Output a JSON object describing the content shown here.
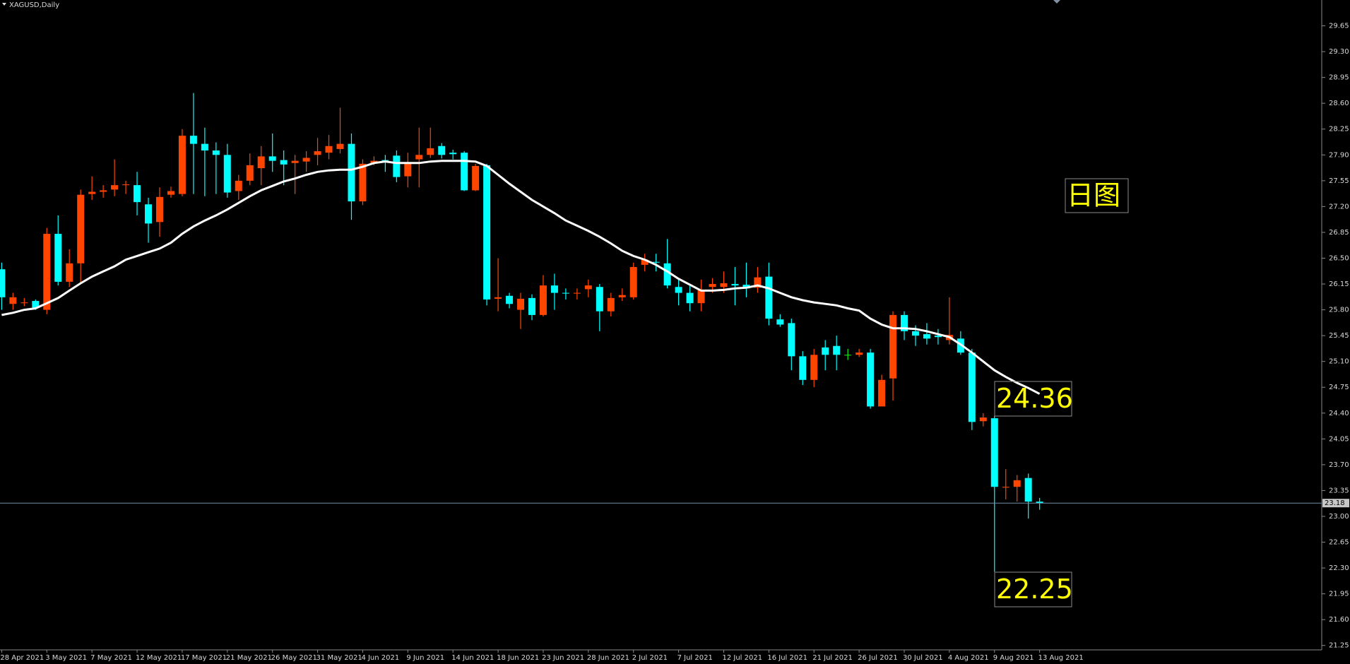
{
  "chart_data": {
    "type": "candlestick",
    "title": "XAGUSD,Daily",
    "categories": [
      "28 Apr 2021",
      null,
      null,
      null,
      "3 May 2021",
      null,
      null,
      null,
      "7 May 2021",
      null,
      null,
      null,
      "12 May 2021",
      null,
      null,
      null,
      "17 May 2021",
      null,
      null,
      null,
      "21 May 2021",
      null,
      null,
      null,
      "26 May 2021",
      null,
      null,
      null,
      "31 May 2021",
      null,
      null,
      null,
      "4 Jun 2021",
      null,
      null,
      null,
      "9 Jun 2021",
      null,
      null,
      null,
      "14 Jun 2021",
      null,
      null,
      null,
      "18 Jun 2021",
      null,
      null,
      null,
      "23 Jun 2021",
      null,
      null,
      null,
      "28 Jun 2021",
      null,
      null,
      null,
      "2 Jul 2021",
      null,
      null,
      null,
      "7 Jul 2021",
      null,
      null,
      null,
      "12 Jul 2021",
      null,
      null,
      null,
      "16 Jul 2021",
      null,
      null,
      null,
      "21 Jul 2021",
      null,
      null,
      null,
      "26 Jul 2021",
      null,
      null,
      null,
      "30 Jul 2021",
      null,
      null,
      null,
      "4 Aug 2021",
      null,
      null,
      null,
      "9 Aug 2021",
      null,
      null,
      null,
      "13 Aug 2021"
    ],
    "open": [
      26.35,
      25.88,
      25.89,
      25.92,
      25.8,
      26.83,
      26.18,
      26.43,
      27.37,
      27.4,
      27.43,
      27.49,
      27.49,
      27.23,
      26.99,
      27.36,
      27.37,
      28.16,
      28.05,
      27.96,
      27.9,
      27.41,
      27.55,
      27.72,
      27.88,
      27.83,
      27.79,
      27.81,
      27.9,
      27.93,
      27.98,
      28.05,
      27.27,
      27.79,
      27.83,
      27.89,
      27.61,
      27.84,
      27.9,
      28.02,
      27.93,
      27.93,
      27.42,
      27.76,
      25.95,
      25.99,
      25.8,
      25.96,
      25.73,
      26.13,
      26.03,
      26.02,
      26.08,
      26.11,
      25.78,
      25.97,
      25.97,
      26.41,
      26.45,
      26.43,
      26.11,
      26.03,
      25.89,
      26.11,
      26.11,
      26.15,
      26.14,
      26.1,
      26.25,
      25.67,
      25.62,
      25.17,
      24.85,
      25.29,
      25.31,
      25.19,
      25.19,
      25.22,
      24.49,
      24.87,
      25.73,
      25.51,
      25.47,
      25.45,
      25.39,
      25.41,
      25.22,
      24.29,
      24.33,
      23.39,
      23.4,
      23.52,
      23.2
    ],
    "high": [
      26.44,
      26.03,
      25.96,
      25.94,
      26.91,
      27.08,
      26.62,
      27.43,
      27.61,
      27.49,
      27.84,
      27.55,
      27.67,
      27.32,
      27.46,
      27.47,
      28.25,
      28.74,
      28.27,
      28.07,
      28.05,
      27.63,
      27.92,
      28.02,
      28.19,
      27.96,
      27.9,
      27.95,
      28.13,
      28.17,
      28.54,
      28.19,
      27.84,
      27.88,
      27.9,
      27.96,
      27.93,
      28.27,
      28.27,
      28.06,
      27.97,
      27.95,
      27.78,
      27.78,
      26.5,
      26.03,
      26.03,
      26.01,
      26.27,
      26.29,
      26.09,
      26.09,
      26.21,
      26.15,
      26.03,
      26.09,
      26.44,
      26.56,
      26.56,
      26.76,
      26.21,
      26.15,
      26.21,
      26.23,
      26.32,
      26.38,
      26.44,
      26.38,
      26.44,
      25.74,
      25.68,
      25.24,
      25.27,
      25.39,
      25.45,
      25.27,
      25.27,
      25.27,
      24.92,
      25.78,
      25.78,
      25.59,
      25.62,
      25.54,
      25.97,
      25.51,
      25.27,
      24.4,
      24.36,
      23.64,
      23.56,
      23.58,
      23.25
    ],
    "low": [
      25.8,
      25.8,
      25.85,
      25.8,
      25.74,
      26.13,
      26.11,
      26.15,
      27.29,
      27.32,
      27.34,
      27.37,
      27.08,
      26.71,
      26.79,
      27.32,
      27.34,
      27.37,
      27.34,
      27.37,
      27.32,
      27.29,
      27.49,
      27.49,
      27.67,
      27.49,
      27.37,
      27.67,
      27.76,
      27.84,
      27.92,
      27.02,
      27.22,
      27.76,
      27.67,
      27.53,
      27.46,
      27.46,
      27.86,
      27.85,
      27.84,
      27.41,
      27.41,
      25.86,
      25.78,
      25.82,
      25.54,
      25.66,
      25.71,
      25.8,
      25.94,
      25.94,
      25.97,
      25.51,
      25.71,
      25.92,
      25.94,
      26.32,
      26.32,
      26.09,
      25.86,
      25.78,
      25.78,
      26.03,
      26.03,
      25.86,
      25.97,
      26.03,
      25.59,
      25.57,
      24.98,
      24.78,
      24.75,
      24.98,
      24.98,
      25.12,
      25.16,
      24.46,
      24.57,
      24.57,
      25.39,
      25.31,
      25.33,
      25.33,
      25.33,
      25.19,
      24.17,
      24.22,
      22.25,
      23.23,
      23.2,
      22.97,
      23.09
    ],
    "close": [
      25.97,
      25.97,
      25.9,
      25.83,
      26.83,
      26.18,
      26.43,
      27.36,
      27.4,
      27.42,
      27.49,
      27.5,
      27.26,
      26.97,
      27.33,
      27.41,
      28.16,
      28.05,
      27.96,
      27.9,
      27.39,
      27.55,
      27.76,
      27.88,
      27.82,
      27.77,
      27.82,
      27.86,
      27.95,
      28.02,
      28.05,
      27.27,
      27.78,
      27.82,
      27.82,
      27.6,
      27.78,
      27.9,
      27.99,
      27.9,
      27.91,
      27.42,
      27.75,
      25.94,
      25.97,
      25.88,
      25.95,
      25.73,
      26.13,
      26.03,
      26.02,
      26.03,
      26.13,
      25.78,
      25.96,
      26.0,
      26.38,
      26.48,
      26.44,
      26.13,
      26.03,
      25.89,
      26.07,
      26.15,
      26.16,
      26.13,
      26.09,
      26.24,
      25.68,
      25.6,
      25.17,
      24.85,
      25.19,
      25.19,
      25.19,
      25.19,
      25.22,
      24.49,
      24.85,
      25.73,
      25.51,
      25.45,
      25.41,
      25.43,
      25.46,
      25.22,
      24.28,
      24.34,
      23.4,
      23.4,
      23.49,
      23.2,
      23.18
    ],
    "up_color": "#ff4500",
    "down_color": "#00ffff",
    "doji_color": "#00ff00",
    "moving_average": {
      "color": "#ffffff",
      "values": [
        25.73,
        25.76,
        25.8,
        25.82,
        25.89,
        25.96,
        26.06,
        26.16,
        26.25,
        26.32,
        26.39,
        26.48,
        26.53,
        26.58,
        26.63,
        26.71,
        26.83,
        26.93,
        27.01,
        27.08,
        27.16,
        27.25,
        27.34,
        27.42,
        27.48,
        27.54,
        27.58,
        27.63,
        27.67,
        27.69,
        27.7,
        27.7,
        27.74,
        27.79,
        27.81,
        27.79,
        27.79,
        27.79,
        27.81,
        27.82,
        27.82,
        27.82,
        27.81,
        27.75,
        27.63,
        27.51,
        27.4,
        27.29,
        27.2,
        27.11,
        27.01,
        26.94,
        26.87,
        26.79,
        26.7,
        26.6,
        26.53,
        26.48,
        26.41,
        26.32,
        26.22,
        26.14,
        26.06,
        26.06,
        26.07,
        26.09,
        26.1,
        26.13,
        26.09,
        26.03,
        25.97,
        25.93,
        25.9,
        25.88,
        25.86,
        25.82,
        25.79,
        25.68,
        25.6,
        25.55,
        25.55,
        25.54,
        25.51,
        25.47,
        25.43,
        25.33,
        25.22,
        25.1,
        24.98,
        24.89,
        24.81,
        24.74,
        24.66
      ]
    },
    "last_price": 23.18,
    "ylim": [
      21.19,
      30.0
    ],
    "yticks": [
      21.25,
      {
        "value": 21.6,
        "label": "21.60"
      },
      21.95,
      {
        "value": 22.3,
        "label": "22.30"
      },
      22.65,
      {
        "value": 23.0,
        "label": "23.00"
      },
      23.35,
      {
        "value": 23.7,
        "label": "23.70"
      },
      24.05,
      {
        "value": 24.4,
        "label": "24.40"
      },
      24.75,
      {
        "value": 25.1,
        "label": "25.10"
      },
      25.45,
      {
        "value": 25.8,
        "label": "25.80"
      },
      26.15,
      {
        "value": 26.5,
        "label": "26.50"
      },
      26.85,
      {
        "value": 27.2,
        "label": "27.20"
      },
      27.55,
      {
        "value": 27.9,
        "label": "27.90"
      },
      28.25,
      {
        "value": 28.6,
        "label": "28.60"
      },
      28.95,
      {
        "value": 29.3,
        "label": "29.30"
      },
      29.65
    ],
    "annotations": [
      "24.36",
      "22.25",
      "日图"
    ]
  }
}
